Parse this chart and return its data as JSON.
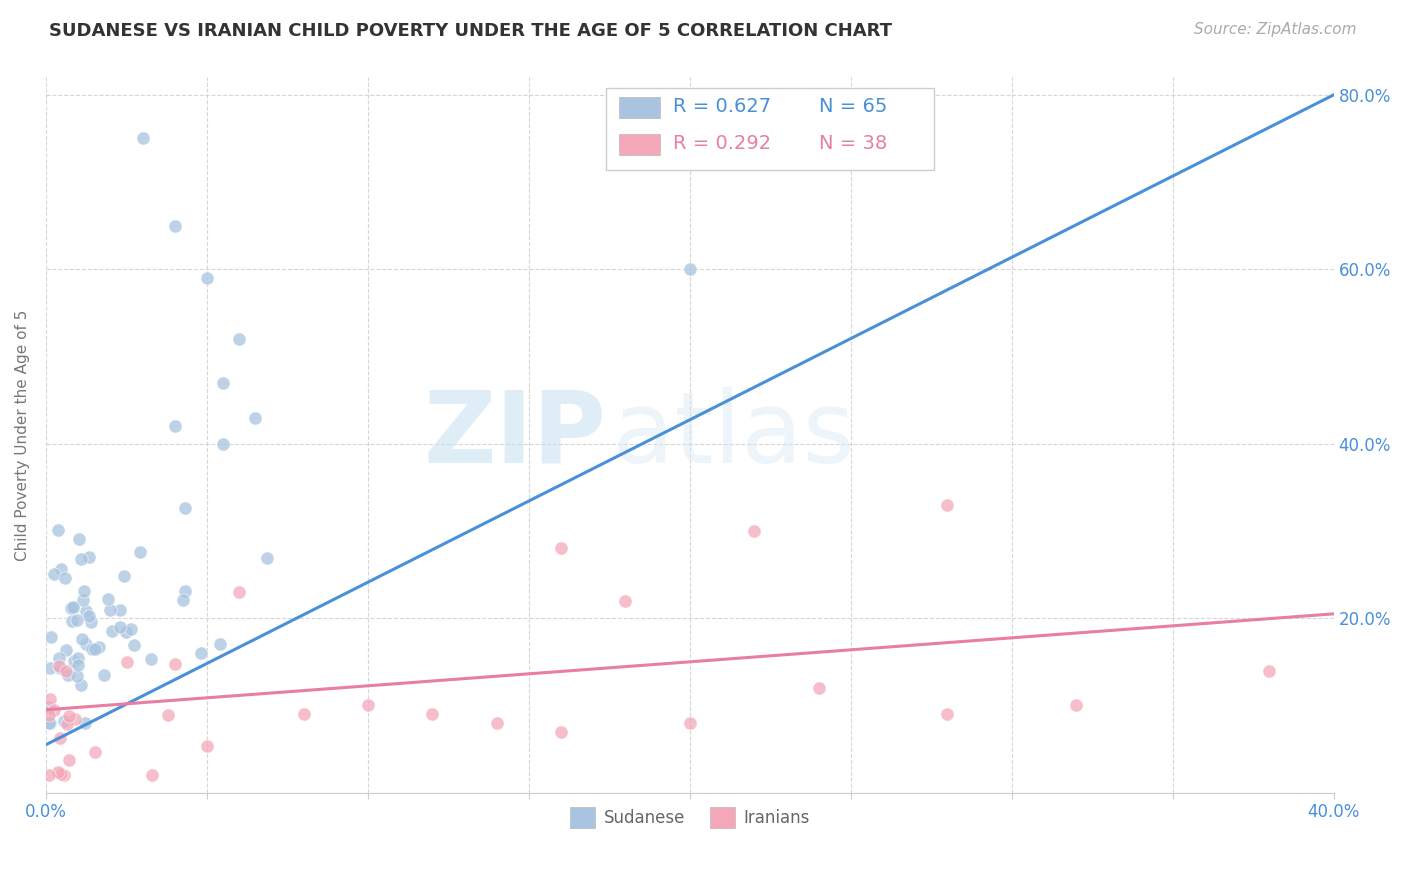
{
  "title": "SUDANESE VS IRANIAN CHILD POVERTY UNDER THE AGE OF 5 CORRELATION CHART",
  "source": "Source: ZipAtlas.com",
  "ylabel": "Child Poverty Under the Age of 5",
  "xlim": [
    0.0,
    0.4
  ],
  "ylim": [
    0.0,
    0.82
  ],
  "xticks": [
    0.0,
    0.05,
    0.1,
    0.15,
    0.2,
    0.25,
    0.3,
    0.35,
    0.4
  ],
  "xtick_labels": [
    "0.0%",
    "",
    "",
    "",
    "",
    "",
    "",
    "",
    "40.0%"
  ],
  "yticks": [
    0.0,
    0.2,
    0.4,
    0.6,
    0.8
  ],
  "ytick_labels_right": [
    "",
    "20.0%",
    "40.0%",
    "60.0%",
    "80.0%"
  ],
  "sudanese_color": "#a8c4e0",
  "iranian_color": "#f4a7b9",
  "sudanese_line_color": "#4a90d9",
  "iranian_line_color": "#e87ea1",
  "legend_R_sudanese": "R = 0.627",
  "legend_N_sudanese": "N = 65",
  "legend_R_iranian": "R = 0.292",
  "legend_N_iranian": "N = 38",
  "watermark_zip": "ZIP",
  "watermark_atlas": "atlas",
  "sudanese_trend_x": [
    0.0,
    0.4
  ],
  "sudanese_trend_y": [
    0.055,
    0.8
  ],
  "iranian_trend_x": [
    0.0,
    0.4
  ],
  "iranian_trend_y": [
    0.095,
    0.205
  ],
  "background_color": "#ffffff",
  "grid_color": "#cccccc",
  "title_fontsize": 13,
  "axis_fontsize": 11,
  "tick_fontsize": 12,
  "legend_fontsize": 14,
  "source_fontsize": 11
}
